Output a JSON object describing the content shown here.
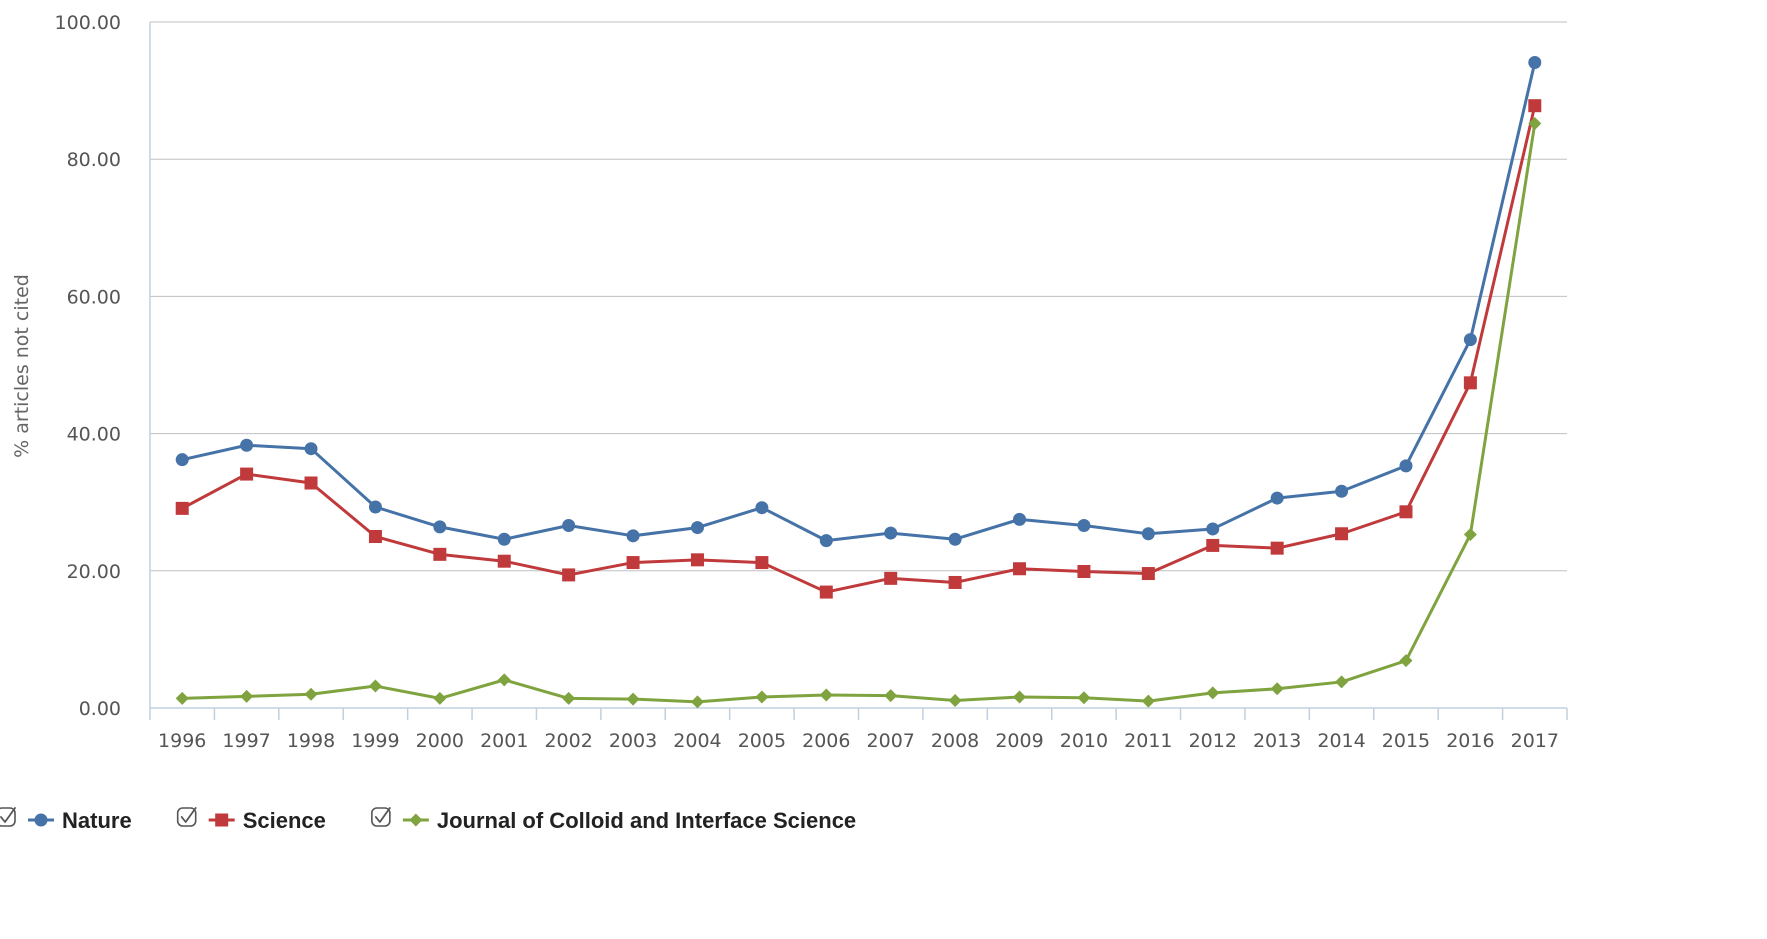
{
  "chart_data": {
    "type": "line",
    "title": "",
    "xlabel": "",
    "ylabel": "% articles not cited",
    "categories": [
      "1996",
      "1997",
      "1998",
      "1999",
      "2000",
      "2001",
      "2002",
      "2003",
      "2004",
      "2005",
      "2006",
      "2007",
      "2008",
      "2009",
      "2010",
      "2011",
      "2012",
      "2013",
      "2014",
      "2015",
      "2016",
      "2017"
    ],
    "ylim": [
      0,
      100
    ],
    "yticks": [
      "0.00",
      "20.00",
      "40.00",
      "60.00",
      "80.00",
      "100.00"
    ],
    "grid": true,
    "legend_position": "bottom-left",
    "series": [
      {
        "name": "Nature",
        "color": "#4572A7",
        "marker": "circle",
        "values": [
          36.2,
          38.3,
          37.8,
          29.3,
          26.4,
          24.6,
          26.6,
          25.1,
          26.3,
          29.2,
          24.4,
          25.5,
          24.6,
          27.5,
          26.6,
          25.4,
          26.1,
          30.6,
          31.6,
          35.3,
          53.7,
          94.1
        ]
      },
      {
        "name": "Science",
        "color": "#C0393B",
        "marker": "square",
        "values": [
          29.1,
          34.1,
          32.8,
          25.0,
          22.4,
          21.4,
          19.4,
          21.2,
          21.6,
          21.2,
          16.9,
          18.9,
          18.3,
          20.3,
          19.9,
          19.6,
          23.7,
          23.3,
          25.4,
          28.6,
          47.4,
          87.8
        ]
      },
      {
        "name": "Journal of Colloid and Interface Science",
        "color": "#7FA33F",
        "marker": "diamond",
        "values": [
          1.4,
          1.7,
          2.0,
          3.2,
          1.4,
          4.1,
          1.4,
          1.3,
          0.9,
          1.6,
          1.9,
          1.8,
          1.1,
          1.6,
          1.5,
          1.0,
          2.2,
          2.8,
          3.8,
          6.9,
          25.3,
          85.2
        ]
      }
    ]
  },
  "legend": {
    "checkbox_icon": "checkbox-checked-icon",
    "items": [
      {
        "label": "Nature",
        "checked": true
      },
      {
        "label": "Science",
        "checked": true
      },
      {
        "label": "Journal of Colloid and Interface Science",
        "checked": true
      }
    ]
  }
}
